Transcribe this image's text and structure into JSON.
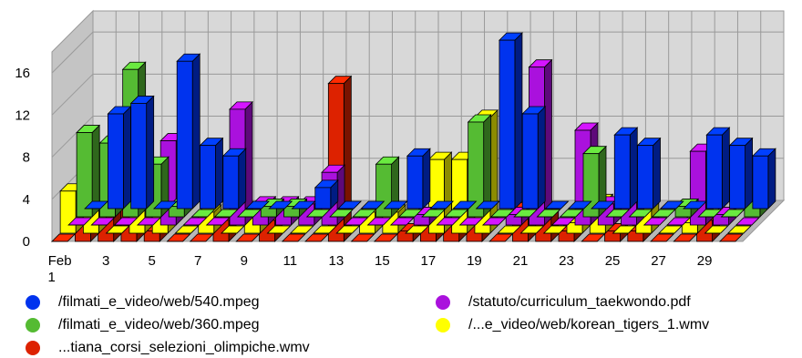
{
  "chart_data": {
    "type": "bar",
    "subtype": "3d-clustered-columns",
    "title": "",
    "xlabel": "",
    "ylabel": "",
    "ylim": [
      0,
      18
    ],
    "yticks": [
      0,
      4,
      8,
      12,
      16
    ],
    "grid": true,
    "legend_position": "bottom",
    "categories": [
      "1",
      "2",
      "3",
      "4",
      "5",
      "6",
      "7",
      "8",
      "9",
      "10",
      "11",
      "12",
      "13",
      "14",
      "15",
      "16",
      "17",
      "18",
      "19",
      "20",
      "21",
      "22",
      "23",
      "24",
      "25",
      "26",
      "27",
      "28",
      "29",
      "30"
    ],
    "x_tick_labels": [
      {
        "index": 0,
        "line1": "Feb",
        "line2": "1"
      },
      {
        "index": 2,
        "line1": "3"
      },
      {
        "index": 4,
        "line1": "5"
      },
      {
        "index": 6,
        "line1": "7"
      },
      {
        "index": 8,
        "line1": "9"
      },
      {
        "index": 10,
        "line1": "11"
      },
      {
        "index": 12,
        "line1": "13"
      },
      {
        "index": 14,
        "line1": "15"
      },
      {
        "index": 16,
        "line1": "17"
      },
      {
        "index": 18,
        "line1": "19"
      },
      {
        "index": 20,
        "line1": "21"
      },
      {
        "index": 22,
        "line1": "23"
      },
      {
        "index": 24,
        "line1": "25"
      },
      {
        "index": 26,
        "line1": "27"
      },
      {
        "index": 28,
        "line1": "29"
      }
    ],
    "series": [
      {
        "name": "/filmati_e_video/web/540.mpeg",
        "color": "#0033ee",
        "values": [
          0,
          9,
          10,
          0,
          14,
          6,
          5,
          0,
          0,
          0,
          2,
          0,
          0,
          0,
          5,
          0,
          0,
          0,
          16,
          9,
          0,
          0,
          0,
          7,
          6,
          0,
          0,
          7,
          6,
          5
        ]
      },
      {
        "name": "/filmati_e_video/web/360.mpeg",
        "color": "#55bb33",
        "values": [
          8,
          7,
          14,
          5,
          1,
          0,
          0,
          0,
          1,
          1,
          0,
          0,
          0,
          5,
          0,
          0,
          0,
          9,
          0,
          0,
          0,
          0,
          6,
          0,
          0,
          0,
          1,
          0,
          0,
          3
        ]
      },
      {
        "name": "/statuto/curriculum_taekwondo.pdf",
        "color": "#aa11dd",
        "values": [
          0,
          0,
          0,
          0,
          8,
          0,
          0,
          11,
          2,
          2,
          2,
          5,
          0,
          0,
          0,
          1,
          0,
          0,
          0,
          1,
          15,
          0,
          9,
          2,
          4,
          0,
          0,
          7,
          1,
          0
        ]
      },
      {
        "name": "/...e_video/web/korean_tigers_1.wmv",
        "color": "#ffff00",
        "values": [
          4,
          7,
          0,
          6,
          2,
          0,
          2,
          0,
          2,
          0,
          0,
          0,
          0,
          2,
          2,
          0,
          7,
          7,
          11,
          0,
          0,
          0,
          1,
          3,
          0,
          6,
          0,
          1,
          0,
          0
        ]
      },
      {
        "name": "...tiana_corsi_selezioni_olimpiche.wmv",
        "color": "#dd2200",
        "values": [
          0,
          3,
          8,
          3,
          1,
          0,
          0,
          2,
          0,
          2,
          0,
          0,
          15,
          0,
          0,
          1,
          2,
          6,
          4,
          0,
          3,
          3,
          1,
          0,
          1,
          1,
          0,
          0,
          2,
          0
        ]
      }
    ]
  }
}
